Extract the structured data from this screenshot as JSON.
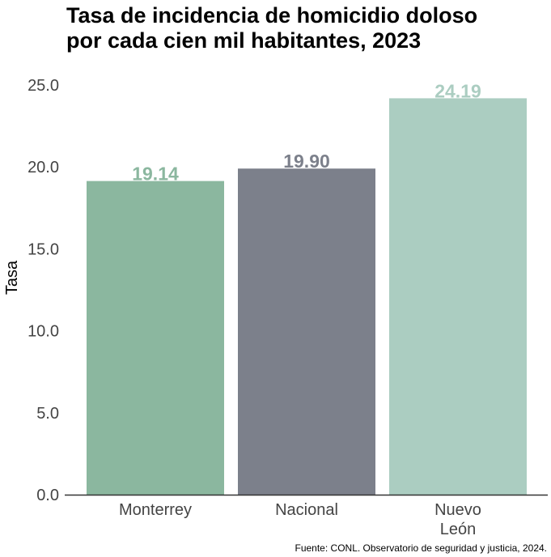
{
  "chart_data": {
    "type": "bar",
    "title_lines": [
      "Tasa de incidencia de homicidio doloso",
      "por cada cien mil habitantes, 2023"
    ],
    "ylabel": "Tasa",
    "xlabel": "",
    "ylim": [
      0,
      25
    ],
    "yticks": [
      "0.0",
      "5.0",
      "10.0",
      "15.0",
      "20.0",
      "25.0"
    ],
    "categories": [
      {
        "label_lines": [
          "Monterrey"
        ],
        "value": 19.14,
        "value_label": "19.14",
        "color": "#8bb79f"
      },
      {
        "label_lines": [
          "Nacional"
        ],
        "value": 19.9,
        "value_label": "19.90",
        "color": "#7c808b"
      },
      {
        "label_lines": [
          "Nuevo",
          "León"
        ],
        "value": 24.19,
        "value_label": "24.19",
        "color": "#abcdc1"
      }
    ],
    "grid": false,
    "caption": "Fuente: CONL. Observatorio de seguridad y justicia, 2024."
  }
}
